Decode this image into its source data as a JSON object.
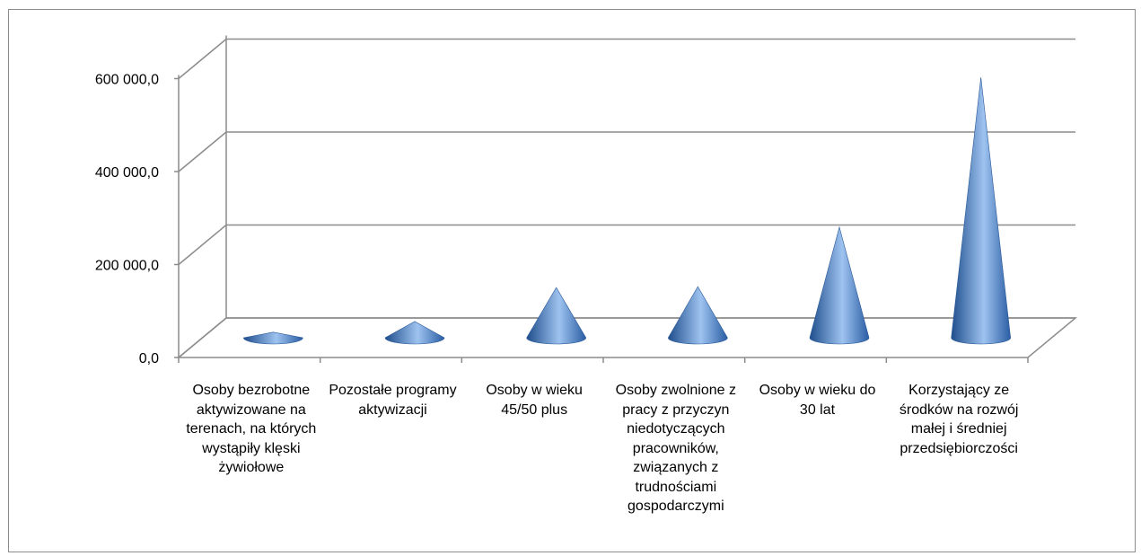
{
  "chart_data": {
    "type": "bar",
    "shape": "cone-3d",
    "categories": [
      "Osoby bezrobotne aktywizowane na terenach, na których wystąpiły klęski żywiołowe",
      "Pozostałe programy aktywizacji",
      "Osoby w wieku 45/50 plus",
      "Osoby zwolnione z pracy z przyczyn niedotyczących pracowników, związanych z trudnościami gospodarczymi",
      "Osoby w wieku do 30 lat",
      "Korzystający ze środków na rozwój małej i średniej przedsiębiorczości"
    ],
    "values": [
      12000,
      35000,
      108000,
      110000,
      238000,
      560000
    ],
    "ylim": [
      0,
      600000
    ],
    "yticks": [
      0,
      200000,
      400000,
      600000
    ],
    "ytick_labels": [
      "0,0",
      "200 000,0",
      "400 000,0",
      "600 000,0"
    ],
    "grid": true,
    "legend": "none",
    "colors": {
      "cone_dark": "#1f4e8c",
      "cone_mid": "#4a7fc5",
      "cone_light": "#9ec3f0",
      "grid": "#8c8c8c"
    }
  }
}
